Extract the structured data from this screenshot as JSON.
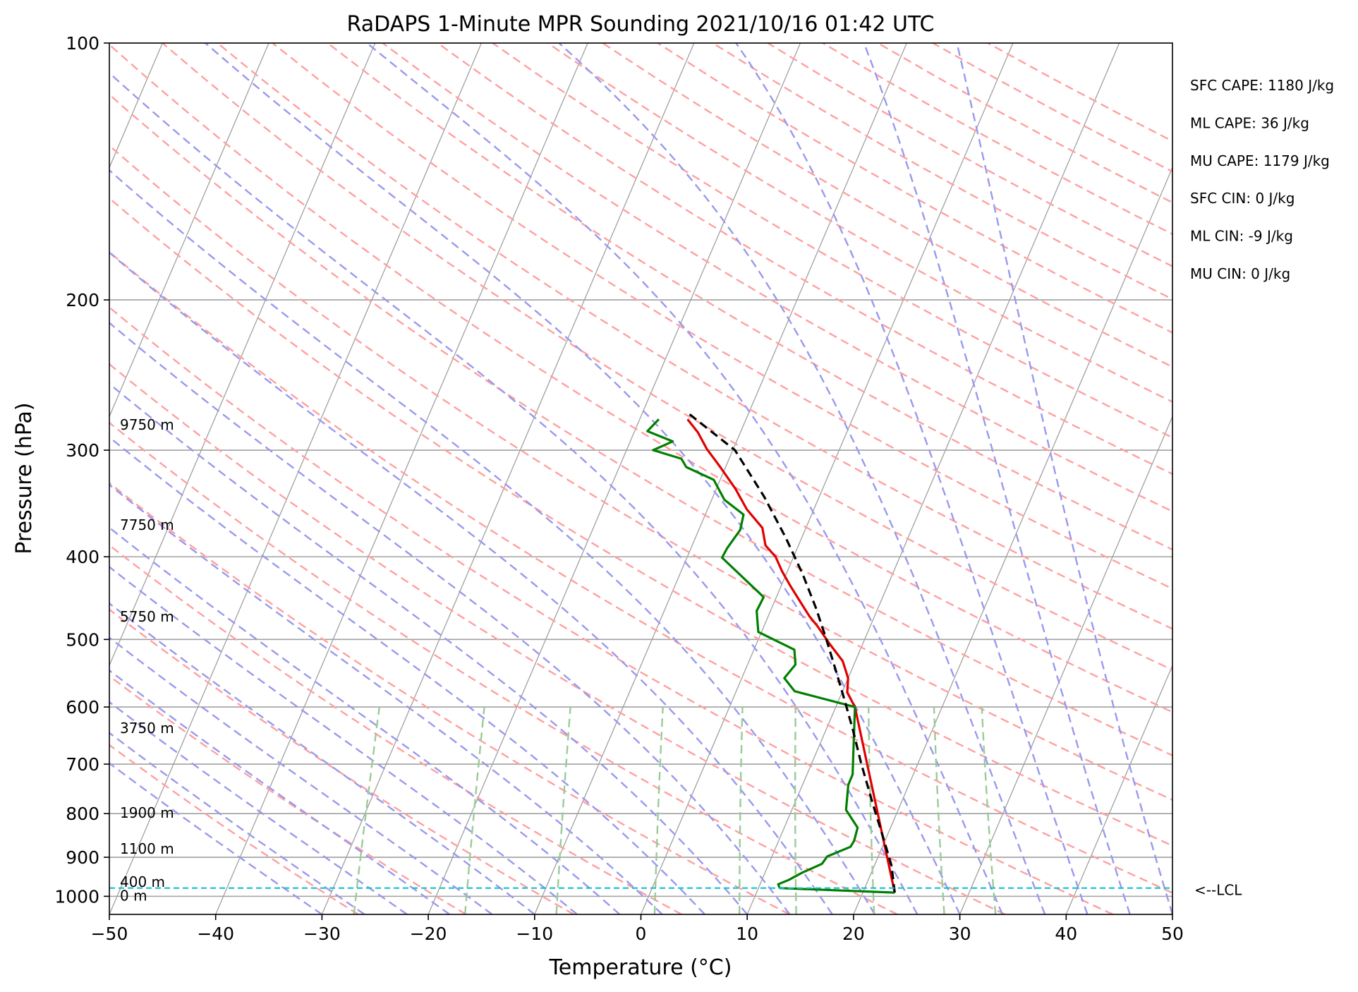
{
  "chart_data": {
    "type": "line",
    "title": "RaDAPS 1-Minute MPR Sounding 2021/10/16 01:42 UTC",
    "xlabel": "Temperature (°C)",
    "ylabel": "Pressure (hPa)",
    "xlim": [
      -50,
      50
    ],
    "ylim": [
      1050,
      100
    ],
    "y_scale": "log",
    "x_ticks": [
      "−50",
      "−40",
      "−30",
      "−20",
      "−10",
      "0",
      "10",
      "20",
      "30",
      "40",
      "50"
    ],
    "y_ticks": [
      "100",
      "200",
      "300",
      "400",
      "500",
      "600",
      "700",
      "800",
      "900",
      "1000"
    ],
    "grid": true,
    "series": [
      {
        "color": "#e00000",
        "points": [
          [
            23,
            990
          ],
          [
            11.8,
            600
          ],
          [
            10.5,
            577
          ],
          [
            10,
            555
          ],
          [
            8.8,
            530
          ],
          [
            6.8,
            505
          ],
          [
            5,
            482
          ],
          [
            3.9,
            470
          ],
          [
            2.3,
            450
          ],
          [
            0.8,
            432
          ],
          [
            -0.5,
            416
          ],
          [
            -1.7,
            400
          ],
          [
            -3.1,
            388
          ],
          [
            -4.1,
            370
          ],
          [
            -6.3,
            352
          ],
          [
            -8.2,
            333
          ],
          [
            -10.5,
            314
          ],
          [
            -12.5,
            299
          ],
          [
            -14,
            286
          ],
          [
            -15.5,
            276
          ]
        ]
      },
      {
        "color": "#007f00",
        "points": [
          [
            23,
            990
          ],
          [
            12,
            978
          ],
          [
            11.7,
            968
          ],
          [
            12.5,
            957
          ],
          [
            13.5,
            938
          ],
          [
            15,
            916
          ],
          [
            15.2,
            898
          ],
          [
            17,
            875
          ],
          [
            17.1,
            861
          ],
          [
            16.9,
            831
          ],
          [
            15.1,
            792
          ],
          [
            14.3,
            740
          ],
          [
            14.3,
            720
          ],
          [
            11.8,
            600
          ],
          [
            5.5,
            575
          ],
          [
            4,
            555
          ],
          [
            4.5,
            535
          ],
          [
            3.8,
            514
          ],
          [
            -0.3,
            490
          ],
          [
            -1.3,
            463
          ],
          [
            -1.2,
            446
          ],
          [
            -6.7,
            401
          ],
          [
            -6.6,
            391
          ],
          [
            -6.1,
            372
          ],
          [
            -6.4,
            357
          ],
          [
            -8.8,
            343
          ],
          [
            -10.6,
            325
          ],
          [
            -13.7,
            314
          ],
          [
            -14.5,
            307
          ],
          [
            -17.5,
            300
          ],
          [
            -16,
            293
          ],
          [
            -18.8,
            285
          ],
          [
            -18.2,
            276
          ]
        ]
      },
      {
        "color": "#000000",
        "dashed": true,
        "points": [
          [
            23,
            990
          ],
          [
            21.6,
            920
          ],
          [
            19.6,
            850
          ],
          [
            17.4,
            780
          ],
          [
            14.7,
            700
          ],
          [
            12.6,
            640
          ],
          [
            10.6,
            590
          ],
          [
            8.6,
            545
          ],
          [
            6.4,
            500
          ],
          [
            4.2,
            460
          ],
          [
            1.6,
            420
          ],
          [
            -1.5,
            380
          ],
          [
            -5.2,
            340
          ],
          [
            -9.8,
            300
          ],
          [
            -15.8,
            271
          ]
        ]
      }
    ],
    "lcl": {
      "label": "<--LCL",
      "pressure": 978
    },
    "height_labels": [
      {
        "label": "9750 m",
        "pressure": 280
      },
      {
        "label": "7750 m",
        "pressure": 367
      },
      {
        "label": "5750 m",
        "pressure": 470
      },
      {
        "label": "3750 m",
        "pressure": 635
      },
      {
        "label": "1900 m",
        "pressure": 798
      },
      {
        "label": "1100 m",
        "pressure": 880
      },
      {
        "label": "400 m",
        "pressure": 962
      },
      {
        "label": "0 m",
        "pressure": 998
      }
    ],
    "stats": [
      "SFC CAPE: 1180 J/kg",
      "ML CAPE: 36 J/kg",
      "MU CAPE: 1179 J/kg",
      "SFC CIN: 0 J/kg",
      "ML CIN: -9 J/kg",
      "MU CIN: 0 J/kg"
    ],
    "colors": {
      "isotherm": "#a0a0a0",
      "dry_adiabat": "#ffa0a0",
      "moist_adiabat": "#9999ee",
      "mixing_ratio": "#99cc99",
      "lcl_line": "#17becf"
    }
  }
}
